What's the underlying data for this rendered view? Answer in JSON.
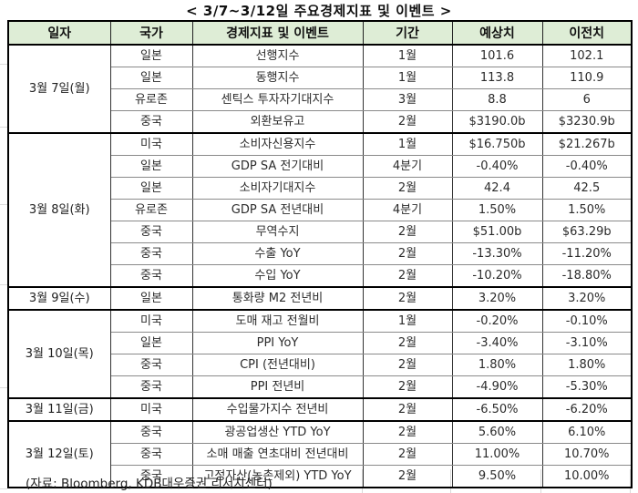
{
  "title": "< 3/7~3/12일 주요경제지표 및 이벤트 >",
  "footer": "(자료: Bloomberg, KDB대우증권 리서치센터)",
  "colors": {
    "header_bg": "#DEEDD6",
    "outer_border": "#000000",
    "inner_grid": "#8A8A8A",
    "text": "#2B2B2B"
  },
  "table": {
    "headers": [
      "일자",
      "국가",
      "경제지표 및 이벤트",
      "기간",
      "예상치",
      "이전치"
    ],
    "groups": [
      {
        "date": "3월 7일(월)",
        "rows": [
          {
            "country": "일본",
            "event": "선행지수",
            "period": "1월",
            "forecast": "101.6",
            "previous": "102.1"
          },
          {
            "country": "일본",
            "event": "동행지수",
            "period": "1월",
            "forecast": "113.8",
            "previous": "110.9"
          },
          {
            "country": "유로존",
            "event": "센틱스 투자자기대지수",
            "period": "3월",
            "forecast": "8.8",
            "previous": "6"
          },
          {
            "country": "중국",
            "event": "외환보유고",
            "period": "2월",
            "forecast": "$3190.0b",
            "previous": "$3230.9b"
          }
        ]
      },
      {
        "date": "3월 8일(화)",
        "rows": [
          {
            "country": "미국",
            "event": "소비자신용지수",
            "period": "1월",
            "forecast": "$16.750b",
            "previous": "$21.267b"
          },
          {
            "country": "일본",
            "event": "GDP SA 전기대비",
            "period": "4분기",
            "forecast": "-0.40%",
            "previous": "-0.40%"
          },
          {
            "country": "일본",
            "event": "소비자기대지수",
            "period": "2월",
            "forecast": "42.4",
            "previous": "42.5"
          },
          {
            "country": "유로존",
            "event": "GDP SA 전년대비",
            "period": "4분기",
            "forecast": "1.50%",
            "previous": "1.50%"
          },
          {
            "country": "중국",
            "event": "무역수지",
            "period": "2월",
            "forecast": "$51.00b",
            "previous": "$63.29b"
          },
          {
            "country": "중국",
            "event": "수출 YoY",
            "period": "2월",
            "forecast": "-13.30%",
            "previous": "-11.20%"
          },
          {
            "country": "중국",
            "event": "수입 YoY",
            "period": "2월",
            "forecast": "-10.20%",
            "previous": "-18.80%"
          }
        ]
      },
      {
        "date": "3월 9일(수)",
        "rows": [
          {
            "country": "일본",
            "event": "통화량 M2 전년비",
            "period": "2월",
            "forecast": "3.20%",
            "previous": "3.20%"
          }
        ]
      },
      {
        "date": "3월 10일(목)",
        "rows": [
          {
            "country": "미국",
            "event": "도매 재고 전월비",
            "period": "1월",
            "forecast": "-0.20%",
            "previous": "-0.10%"
          },
          {
            "country": "일본",
            "event": "PPI YoY",
            "period": "2월",
            "forecast": "-3.40%",
            "previous": "-3.10%"
          },
          {
            "country": "중국",
            "event": "CPI (전년대비)",
            "period": "2월",
            "forecast": "1.80%",
            "previous": "1.80%"
          },
          {
            "country": "중국",
            "event": "PPI 전년비",
            "period": "2월",
            "forecast": "-4.90%",
            "previous": "-5.30%"
          }
        ]
      },
      {
        "date": "3월 11일(금)",
        "rows": [
          {
            "country": "미국",
            "event": "수입물가지수 전년비",
            "period": "2월",
            "forecast": "-6.50%",
            "previous": "-6.20%"
          }
        ]
      },
      {
        "date": "3월 12일(토)",
        "rows": [
          {
            "country": "중국",
            "event": "광공업생산 YTD YoY",
            "period": "2월",
            "forecast": "5.60%",
            "previous": "6.10%"
          },
          {
            "country": "중국",
            "event": "소매 매출 연초대비 전년대비",
            "period": "2월",
            "forecast": "11.00%",
            "previous": "10.70%"
          },
          {
            "country": "중국",
            "event": "고정자산(농촌제외) YTD YoY",
            "period": "2월",
            "forecast": "9.50%",
            "previous": "10.00%"
          }
        ]
      }
    ]
  }
}
